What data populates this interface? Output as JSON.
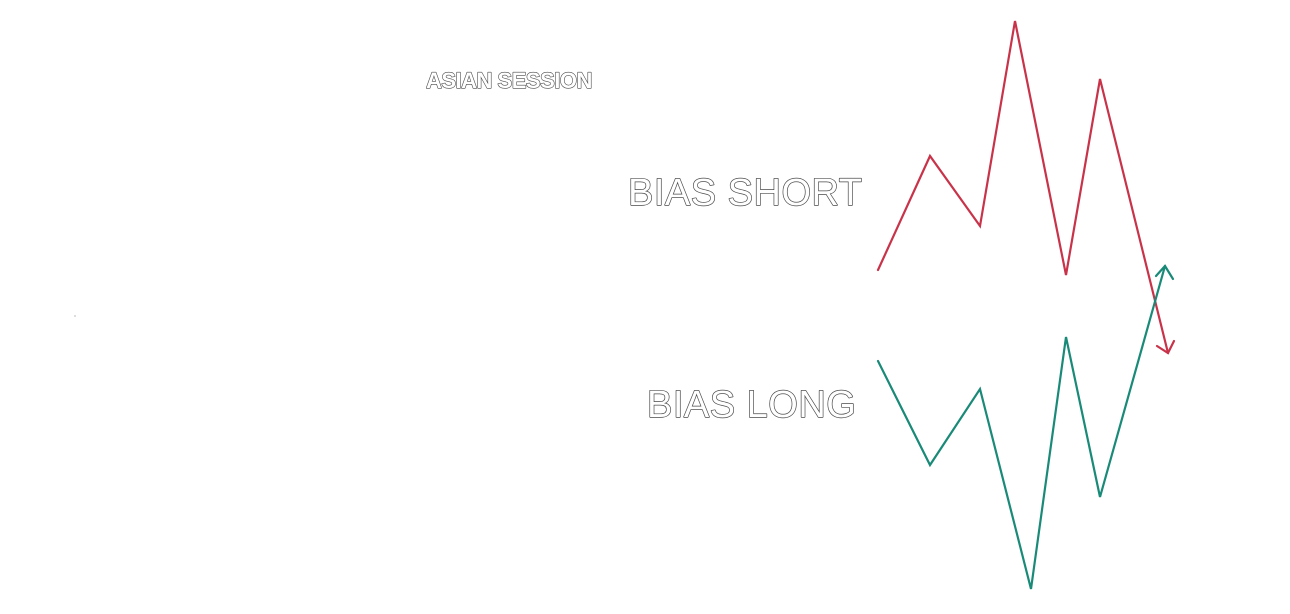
{
  "labels": {
    "session": "ASIAN SESSION",
    "short": "BIAS SHORT",
    "long": "BIAS LONG"
  },
  "colors": {
    "short_line": "#c8334a",
    "long_line": "#1a8a78",
    "text_outline": "#4a4a4a",
    "background": "#ffffff"
  },
  "paths": {
    "short": {
      "direction": "down",
      "arrow": "arrow-down-icon"
    },
    "long": {
      "direction": "up",
      "arrow": "arrow-up-icon"
    }
  }
}
